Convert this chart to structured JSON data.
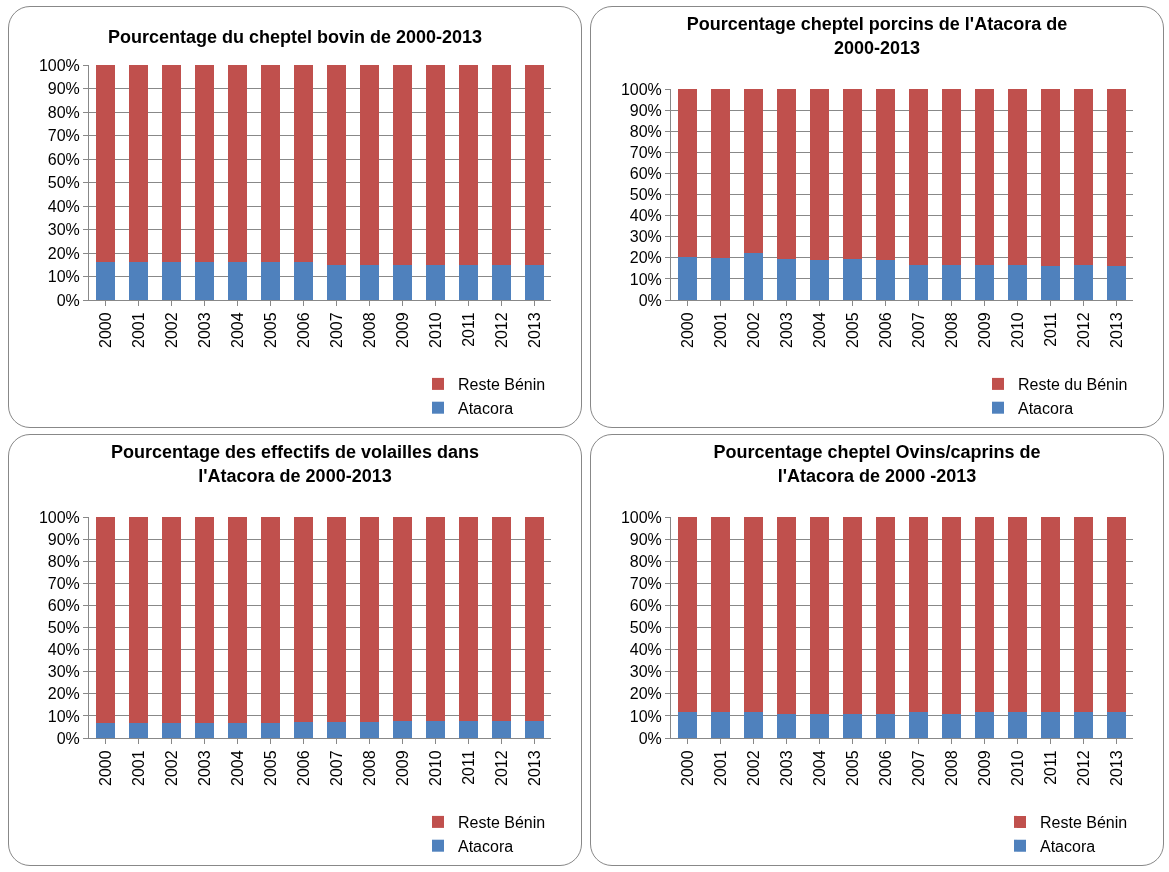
{
  "chart_data": [
    {
      "type": "bar",
      "title": "Pourcentage du cheptel bovin de 2000-2013",
      "categories": [
        "2000",
        "2001",
        "2002",
        "2003",
        "2004",
        "2005",
        "2006",
        "2007",
        "2008",
        "2009",
        "2010",
        "2011",
        "2012",
        "2013"
      ],
      "stacked": true,
      "series": [
        {
          "name": "Atacora",
          "color": "#4f81bd",
          "values": [
            16.2,
            16,
            16.2,
            16,
            16,
            16,
            16.2,
            15,
            15,
            15,
            15,
            15,
            15,
            15
          ]
        },
        {
          "name": "Reste Bénin",
          "color": "#c0504d",
          "values": [
            83.8,
            84,
            83.8,
            84,
            84,
            84,
            83.8,
            85,
            85,
            85,
            85,
            85,
            85,
            85
          ]
        }
      ],
      "ylim": [
        0,
        100
      ],
      "yticks": [
        {
          "value": 0,
          "label": "0%"
        },
        {
          "value": 10,
          "label": "10%"
        },
        {
          "value": 20,
          "label": "20%"
        },
        {
          "value": 30,
          "label": "30%"
        },
        {
          "value": 40,
          "label": "40%"
        },
        {
          "value": 50,
          "label": "50%"
        },
        {
          "value": 60,
          "label": "60%"
        },
        {
          "value": 70,
          "label": "70%"
        },
        {
          "value": 80,
          "label": "80%"
        },
        {
          "value": 90,
          "label": "90%"
        },
        {
          "value": 100,
          "label": "100%"
        }
      ],
      "grid": "y",
      "legend": "bottom right"
    },
    {
      "type": "bar",
      "title": "Pourcentage cheptel porcins de l'Atacora de 2000-2013",
      "categories": [
        "2000",
        "2001",
        "2002",
        "2003",
        "2004",
        "2005",
        "2006",
        "2007",
        "2008",
        "2009",
        "2010",
        "2011",
        "2012",
        "2013"
      ],
      "stacked": true,
      "series": [
        {
          "name": "Atacora",
          "color": "#4f81bd",
          "values": [
            20.3,
            19.7,
            22.4,
            19.4,
            19.1,
            19.4,
            19.1,
            16.7,
            16.4,
            16.8,
            16.4,
            16.2,
            16.4,
            16.2
          ]
        },
        {
          "name": "Reste du Bénin",
          "color": "#c0504d",
          "values": [
            79.7,
            80.3,
            77.6,
            80.6,
            80.9,
            80.6,
            80.9,
            83.3,
            83.6,
            83.2,
            83.6,
            83.8,
            83.6,
            83.8
          ]
        }
      ],
      "ylim": [
        0,
        100
      ],
      "yticks": [
        {
          "value": 0,
          "label": "0%"
        },
        {
          "value": 10,
          "label": "10%"
        },
        {
          "value": 20,
          "label": "20%"
        },
        {
          "value": 30,
          "label": "30%"
        },
        {
          "value": 40,
          "label": "40%"
        },
        {
          "value": 50,
          "label": "50%"
        },
        {
          "value": 60,
          "label": "60%"
        },
        {
          "value": 70,
          "label": "70%"
        },
        {
          "value": 80,
          "label": "80%"
        },
        {
          "value": 90,
          "label": "90%"
        },
        {
          "value": 100,
          "label": "100%"
        }
      ],
      "grid": "y",
      "legend": "bottom right"
    },
    {
      "type": "bar",
      "title": "Pourcentage des effectifs de volailles dans l'Atacora de 2000-2013",
      "categories": [
        "2000",
        "2001",
        "2002",
        "2003",
        "2004",
        "2005",
        "2006",
        "2007",
        "2008",
        "2009",
        "2010",
        "2011",
        "2012",
        "2013"
      ],
      "stacked": true,
      "series": [
        {
          "name": "Atacora",
          "color": "#4f81bd",
          "values": [
            6.8,
            6.8,
            6.8,
            6.8,
            6.8,
            7,
            7.1,
            7.1,
            7.3,
            7.8,
            7.8,
            7.8,
            7.8,
            7.8
          ]
        },
        {
          "name": "Reste Bénin",
          "color": "#c0504d",
          "values": [
            93.2,
            93.2,
            93.2,
            93.2,
            93.2,
            93,
            92.9,
            92.9,
            92.7,
            92.2,
            92.2,
            92.2,
            92.2,
            92.2
          ]
        }
      ],
      "ylim": [
        0,
        100
      ],
      "yticks": [
        {
          "value": 0,
          "label": "0%"
        },
        {
          "value": 10,
          "label": "10%"
        },
        {
          "value": 20,
          "label": "20%"
        },
        {
          "value": 30,
          "label": "30%"
        },
        {
          "value": 40,
          "label": "40%"
        },
        {
          "value": 50,
          "label": "50%"
        },
        {
          "value": 60,
          "label": "60%"
        },
        {
          "value": 70,
          "label": "70%"
        },
        {
          "value": 80,
          "label": "80%"
        },
        {
          "value": 90,
          "label": "90%"
        },
        {
          "value": 100,
          "label": "100%"
        }
      ],
      "grid": "y",
      "legend": "bottom right"
    },
    {
      "type": "bar",
      "title": "Pourcentage cheptel Ovins/caprins de l'Atacora de 2000 -2013",
      "categories": [
        "2000",
        "2001",
        "2002",
        "2003",
        "2004",
        "2005",
        "2006",
        "2007",
        "2008",
        "2009",
        "2010",
        "2011",
        "2012",
        "2013"
      ],
      "stacked": true,
      "series": [
        {
          "name": "Atacora",
          "color": "#4f81bd",
          "values": [
            11.6,
            11.6,
            11.6,
            10.8,
            10.8,
            11,
            11,
            11.6,
            11,
            11.6,
            11.6,
            11.6,
            11.6,
            11.6
          ]
        },
        {
          "name": "Reste Bénin",
          "color": "#c0504d",
          "values": [
            88.4,
            88.4,
            88.4,
            89.2,
            89.2,
            89,
            89,
            88.4,
            89,
            88.4,
            88.4,
            88.4,
            88.4,
            88.4
          ]
        }
      ],
      "ylim": [
        0,
        100
      ],
      "yticks": [
        {
          "value": 0,
          "label": "0%"
        },
        {
          "value": 10,
          "label": "10%"
        },
        {
          "value": 20,
          "label": "20%"
        },
        {
          "value": 30,
          "label": "30%"
        },
        {
          "value": 40,
          "label": "40%"
        },
        {
          "value": 50,
          "label": "50%"
        },
        {
          "value": 60,
          "label": "60%"
        },
        {
          "value": 70,
          "label": "70%"
        },
        {
          "value": 80,
          "label": "80%"
        },
        {
          "value": 90,
          "label": "90%"
        },
        {
          "value": 100,
          "label": "100%"
        }
      ],
      "grid": "y",
      "legend": "bottom right"
    }
  ]
}
